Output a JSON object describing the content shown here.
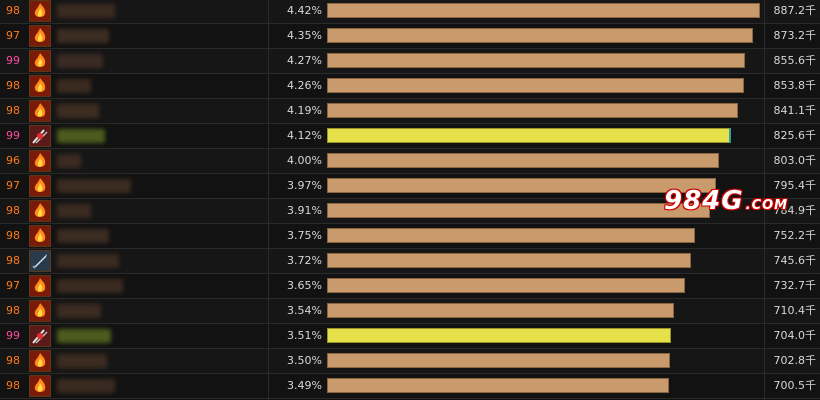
{
  "colors": {
    "bar_default": "#c89a6c",
    "bar_highlight": "#e6e14a",
    "level_98": "#ff7a1a",
    "level_97": "#ff7a1a",
    "level_96": "#ff7a1a",
    "level_99": "#ff4aa0"
  },
  "watermark": {
    "main": "984G",
    "suffix": ".COM"
  },
  "rows": [
    {
      "level": "98",
      "icon": "fire-class-icon",
      "percent": "4.42%",
      "share": 0.998,
      "amount": "887.2千",
      "highlight": false
    },
    {
      "level": "97",
      "icon": "fire-class-icon",
      "percent": "4.35%",
      "share": 0.982,
      "amount": "873.2千",
      "highlight": false
    },
    {
      "level": "99",
      "icon": "fire-class-icon",
      "percent": "4.27%",
      "share": 0.963,
      "amount": "855.6千",
      "highlight": false
    },
    {
      "level": "98",
      "icon": "fire-class-icon",
      "percent": "4.26%",
      "share": 0.96,
      "amount": "853.8千",
      "highlight": false
    },
    {
      "level": "98",
      "icon": "fire-class-icon",
      "percent": "4.19%",
      "share": 0.947,
      "amount": "841.1千",
      "highlight": false
    },
    {
      "level": "99",
      "icon": "warrior-class-icon",
      "percent": "4.12%",
      "share": 0.929,
      "amount": "825.6千",
      "highlight": true
    },
    {
      "level": "96",
      "icon": "fire-class-icon",
      "percent": "4.00%",
      "share": 0.903,
      "amount": "803.0千",
      "highlight": false
    },
    {
      "level": "97",
      "icon": "fire-class-icon",
      "percent": "3.97%",
      "share": 0.896,
      "amount": "795.4千",
      "highlight": false
    },
    {
      "level": "98",
      "icon": "fire-class-icon",
      "percent": "3.91%",
      "share": 0.883,
      "amount": "784.9千",
      "highlight": false
    },
    {
      "level": "98",
      "icon": "fire-class-icon",
      "percent": "3.75%",
      "share": 0.847,
      "amount": "752.2千",
      "highlight": false
    },
    {
      "level": "98",
      "icon": "sword-class-icon",
      "percent": "3.72%",
      "share": 0.839,
      "amount": "745.6千",
      "highlight": false
    },
    {
      "level": "97",
      "icon": "fire-class-icon",
      "percent": "3.65%",
      "share": 0.825,
      "amount": "732.7千",
      "highlight": false
    },
    {
      "level": "98",
      "icon": "fire-class-icon",
      "percent": "3.54%",
      "share": 0.799,
      "amount": "710.4千",
      "highlight": false
    },
    {
      "level": "99",
      "icon": "warrior-class-icon",
      "percent": "3.51%",
      "share": 0.792,
      "amount": "704.0千",
      "highlight": true
    },
    {
      "level": "98",
      "icon": "fire-class-icon",
      "percent": "3.50%",
      "share": 0.791,
      "amount": "702.8千",
      "highlight": false
    },
    {
      "level": "98",
      "icon": "fire-class-icon",
      "percent": "3.49%",
      "share": 0.788,
      "amount": "700.5千",
      "highlight": false
    }
  ]
}
